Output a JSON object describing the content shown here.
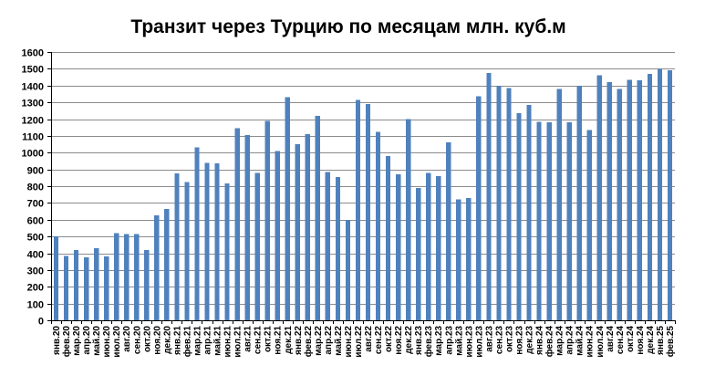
{
  "chart_data": {
    "type": "bar",
    "title": "Транзит через Турцию по месяцам млн. куб.м",
    "xlabel": "",
    "ylabel": "",
    "ylim": [
      0,
      1600
    ],
    "ytick_step": 100,
    "grid": true,
    "legend": "none",
    "bar_color": "#4f81bd",
    "categories": [
      "янв.20",
      "фев.20",
      "мар.20",
      "апр.20",
      "май.20",
      "июн.20",
      "июл.20",
      "авг.20",
      "сен.20",
      "окт.20",
      "ноя.20",
      "дек.20",
      "янв.21",
      "фев.21",
      "мар.21",
      "апр.21",
      "май.21",
      "июн.21",
      "июл.21",
      "авг.21",
      "сен.21",
      "окт.21",
      "ноя.21",
      "дек.21",
      "янв.22",
      "фев.22",
      "мар.22",
      "апр.22",
      "май.22",
      "июн.22",
      "июл.22",
      "авг.22",
      "сен.22",
      "окт.22",
      "ноя.22",
      "дек.22",
      "янв.23",
      "фев.23",
      "мар.23",
      "апр.23",
      "май.23",
      "июн.23",
      "июл.23",
      "авг.23",
      "сен.23",
      "окт.23",
      "ноя.23",
      "дек.23",
      "янв.24",
      "фев.24",
      "мар.24",
      "апр.24",
      "май.24",
      "июн.24",
      "июл.24",
      "авг.24",
      "сен.24",
      "окт.24",
      "ноя.24",
      "дек.24",
      "янв.25",
      "фев.25"
    ],
    "values": [
      500,
      385,
      420,
      375,
      430,
      380,
      520,
      515,
      515,
      420,
      625,
      665,
      875,
      825,
      1030,
      940,
      935,
      815,
      1145,
      1105,
      880,
      1190,
      1010,
      1330,
      1050,
      1110,
      1220,
      885,
      855,
      600,
      1315,
      1290,
      1125,
      980,
      870,
      1200,
      790,
      880,
      860,
      1060,
      720,
      730,
      1335,
      1475,
      1400,
      1385,
      1235,
      1285,
      1185,
      1180,
      1380,
      1180,
      1400,
      1135,
      1460,
      1420,
      1380,
      1435,
      1430,
      1470,
      1500,
      1490
    ]
  }
}
